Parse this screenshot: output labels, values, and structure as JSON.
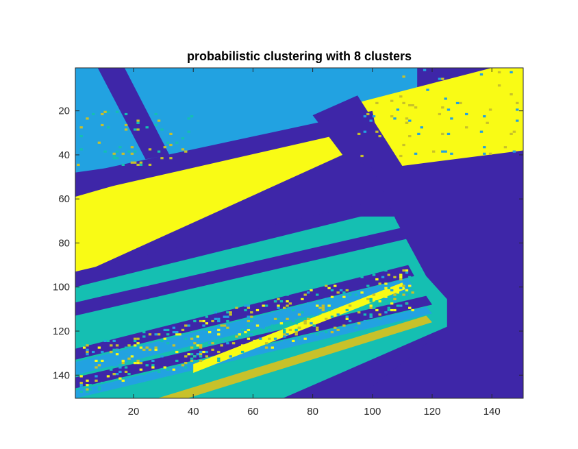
{
  "chart_data": {
    "type": "heatmap",
    "title": "probabilistic clustering with 8 clusters",
    "xlabel": "",
    "ylabel": "",
    "xlim": [
      0.5,
      150.5
    ],
    "ylim": [
      0.5,
      150.5
    ],
    "y_reversed": true,
    "x_ticks": [
      20,
      40,
      60,
      80,
      100,
      120,
      140
    ],
    "y_ticks": [
      20,
      40,
      60,
      80,
      100,
      120,
      140
    ],
    "x_tick_labels": [
      "20",
      "40",
      "60",
      "80",
      "100",
      "120",
      "140"
    ],
    "y_tick_labels": [
      "20",
      "40",
      "60",
      "80",
      "100",
      "120",
      "140"
    ],
    "grid": false,
    "colors": {
      "dark_blue": "#3e26a8",
      "blue": "#22a2e1",
      "teal": "#15bfb2",
      "olive": "#c8c12a",
      "yellow": "#f9fb15"
    },
    "regions": [
      {
        "name": "teal-field",
        "color": "teal",
        "points": [
          [
            0.5,
            98
          ],
          [
            90,
            68
          ],
          [
            125,
            68
          ],
          [
            125,
            118
          ],
          [
            70,
            150.5
          ],
          [
            0.5,
            150.5
          ]
        ]
      },
      {
        "name": "blue-top-left-field",
        "color": "blue",
        "points": [
          [
            0.5,
            0.5
          ],
          [
            115,
            0.5
          ],
          [
            115,
            17
          ],
          [
            95,
            30
          ],
          [
            0.5,
            48
          ]
        ]
      },
      {
        "name": "yellow-top-right-field",
        "color": "yellow",
        "points": [
          [
            93,
            17
          ],
          [
            140,
            0.5
          ],
          [
            150.5,
            0.5
          ],
          [
            150.5,
            38
          ],
          [
            116,
            55
          ],
          [
            108,
            53
          ]
        ]
      },
      {
        "name": "yellow-middle-band",
        "color": "yellow",
        "points": [
          [
            0.5,
            59
          ],
          [
            88,
            25
          ],
          [
            90,
            40
          ],
          [
            0.5,
            95
          ]
        ]
      },
      {
        "name": "dark-center",
        "color": "dark_blue",
        "points": [
          [
            80,
            22
          ],
          [
            95,
            13
          ],
          [
            110,
            45
          ],
          [
            150.5,
            38
          ],
          [
            150.5,
            150.5
          ],
          [
            95,
            150.5
          ],
          [
            130,
            113
          ],
          [
            118,
            95
          ],
          [
            108,
            70
          ],
          [
            100,
            46
          ],
          [
            90,
            40
          ]
        ]
      },
      {
        "name": "dark-road-diagonal",
        "color": "dark_blue",
        "points": [
          [
            0.5,
            49
          ],
          [
            100,
            20
          ],
          [
            101,
            27
          ],
          [
            0.5,
            58
          ]
        ]
      },
      {
        "name": "dark-road-upper-left",
        "color": "dark_blue",
        "points": [
          [
            8,
            0.5
          ],
          [
            17,
            0.5
          ],
          [
            32,
            40
          ],
          [
            24,
            42
          ]
        ]
      },
      {
        "name": "dark-road-lower-1",
        "color": "dark_blue",
        "points": [
          [
            0.5,
            93
          ],
          [
            104,
            60
          ],
          [
            105,
            65
          ],
          [
            0.5,
            100
          ]
        ]
      },
      {
        "name": "dark-road-lower-2",
        "color": "dark_blue",
        "points": [
          [
            0.5,
            107
          ],
          [
            110,
            73
          ],
          [
            112,
            78
          ],
          [
            0.5,
            113
          ]
        ]
      },
      {
        "name": "dark-road-lower-3",
        "color": "dark_blue",
        "points": [
          [
            0.5,
            128
          ],
          [
            112,
            90
          ],
          [
            114,
            95
          ],
          [
            0.5,
            133
          ]
        ]
      },
      {
        "name": "dark-road-lower-4",
        "color": "dark_blue",
        "points": [
          [
            0.5,
            141
          ],
          [
            118,
            104
          ],
          [
            120,
            108
          ],
          [
            0.5,
            146
          ]
        ]
      },
      {
        "name": "blue-strip-lower-1",
        "color": "blue",
        "points": [
          [
            0.5,
            134
          ],
          [
            112,
            96
          ],
          [
            114,
            101
          ],
          [
            0.5,
            140
          ]
        ]
      },
      {
        "name": "blue-strip-lower-2",
        "color": "blue",
        "points": [
          [
            0.5,
            147
          ],
          [
            118,
            109
          ],
          [
            120,
            112
          ],
          [
            0.5,
            150.5
          ]
        ]
      },
      {
        "name": "olive-strip",
        "color": "olive",
        "points": [
          [
            28,
            150.5
          ],
          [
            118,
            113
          ],
          [
            120,
            116
          ],
          [
            38,
            150.5
          ]
        ]
      },
      {
        "name": "yellow-speckle-strip",
        "color": "yellow",
        "points": [
          [
            40,
            135
          ],
          [
            110,
            98
          ],
          [
            111,
            101
          ],
          [
            40,
            139
          ]
        ]
      }
    ]
  }
}
